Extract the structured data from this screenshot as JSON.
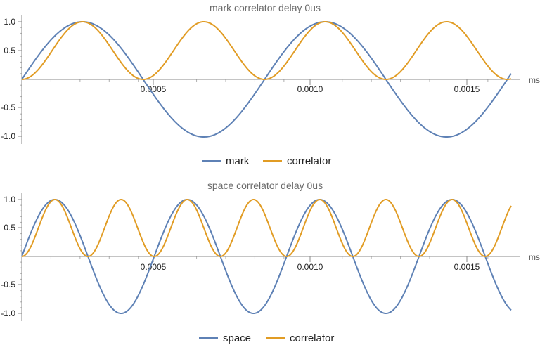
{
  "colors": {
    "series_a": "#5e81b5",
    "series_b": "#e19c24",
    "axis": "#8a8a8a",
    "text": "#222222",
    "title": "#6b6b6b"
  },
  "chart_data": [
    {
      "type": "line",
      "title": "mark correlator delay 0us",
      "xlabel": "ms",
      "ylabel": "",
      "xlim": [
        0,
        0.00168
      ],
      "ylim": [
        -1.05,
        1.05
      ],
      "x_ticks": [
        0.0005,
        0.001,
        0.0015
      ],
      "x_tick_labels": [
        "0.0005",
        "0.0010",
        "0.0015"
      ],
      "y_ticks": [
        1.0,
        0.5,
        -0.5,
        -1.0
      ],
      "y_tick_labels": [
        "1.0",
        "0.5",
        "-0.5",
        "-1.0"
      ],
      "legend": "bottom-center",
      "grid": false,
      "series": [
        {
          "name": "mark",
          "function": "sin",
          "frequency_hz": 1200,
          "exponent": 1
        },
        {
          "name": "correlator",
          "function": "sin",
          "frequency_hz": 1200,
          "exponent": 2
        }
      ]
    },
    {
      "type": "line",
      "title": "space correlator delay 0us",
      "xlabel": "ms",
      "ylabel": "",
      "xlim": [
        0,
        0.00168
      ],
      "ylim": [
        -1.05,
        1.05
      ],
      "x_ticks": [
        0.0005,
        0.001,
        0.0015
      ],
      "x_tick_labels": [
        "0.0005",
        "0.0010",
        "0.0015"
      ],
      "y_ticks": [
        1.0,
        0.5,
        -0.5,
        -1.0
      ],
      "y_tick_labels": [
        "1.0",
        "0.5",
        "-0.5",
        "-1.0"
      ],
      "legend": "bottom-center",
      "grid": false,
      "series": [
        {
          "name": "space",
          "function": "sin",
          "frequency_hz": 2200,
          "exponent": 1
        },
        {
          "name": "correlator",
          "function": "sin",
          "frequency_hz": 2200,
          "exponent": 2
        }
      ]
    }
  ]
}
